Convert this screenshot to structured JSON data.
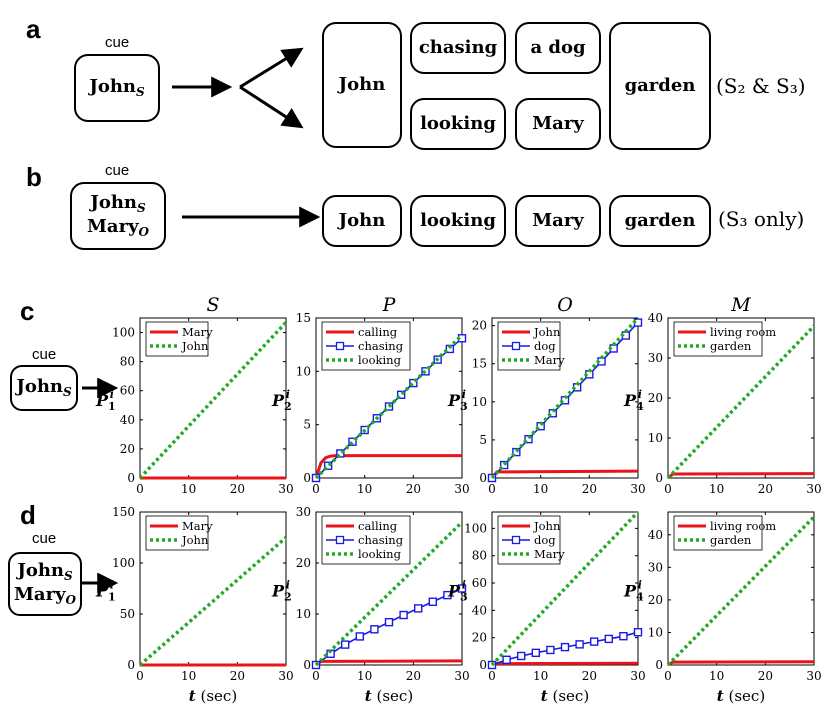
{
  "panel_a": {
    "label": "a",
    "cue": "cue",
    "cue_box": {
      "name": "John",
      "sub": "S"
    },
    "upper_row": [
      "chasing",
      "a dog"
    ],
    "lower_row": [
      "looking",
      "Mary"
    ],
    "subject": "John",
    "location": "garden",
    "note": "(S₂ & S₃)"
  },
  "panel_b": {
    "label": "b",
    "cue": "cue",
    "cue_lines": [
      {
        "name": "John",
        "sub": "S"
      },
      {
        "name": "Mary",
        "sub": "O"
      }
    ],
    "row": [
      "John",
      "looking",
      "Mary",
      "garden"
    ],
    "note": "(S₃ only)"
  },
  "panel_c": {
    "label": "c",
    "cue": "cue",
    "cue_lines": [
      {
        "name": "John",
        "sub": "S"
      }
    ]
  },
  "panel_d": {
    "label": "d",
    "cue": "cue",
    "cue_lines": [
      {
        "name": "John",
        "sub": "S"
      },
      {
        "name": "Mary",
        "sub": "O"
      }
    ]
  },
  "column_titles": [
    "S",
    "P",
    "O",
    "M"
  ],
  "xlabel": "t (sec)",
  "colors": {
    "red": "#e8141a",
    "blue": "#1a1ae6",
    "green": "#22aa22"
  },
  "chart_data": [
    {
      "type": "line",
      "row": "c",
      "col": 0,
      "ylabel": "P_1^i",
      "xlim": [
        0,
        30
      ],
      "ylim": [
        0,
        110
      ],
      "xticks": [
        0,
        10,
        20,
        30
      ],
      "yticks": [
        0,
        20,
        40,
        60,
        80,
        100
      ],
      "series": [
        {
          "name": "Mary",
          "style": "red",
          "x": [
            0,
            30
          ],
          "y": [
            0,
            0
          ]
        },
        {
          "name": "John",
          "style": "green",
          "x": [
            0,
            30
          ],
          "y": [
            0,
            107
          ]
        }
      ]
    },
    {
      "type": "line",
      "row": "c",
      "col": 1,
      "ylabel": "P_2^i",
      "xlim": [
        0,
        30
      ],
      "ylim": [
        0,
        15
      ],
      "xticks": [
        0,
        10,
        20,
        30
      ],
      "yticks": [
        0,
        5,
        10,
        15
      ],
      "series": [
        {
          "name": "calling",
          "style": "red",
          "x": [
            0,
            1,
            2,
            3,
            4,
            5,
            6,
            30
          ],
          "y": [
            0,
            1.4,
            1.9,
            2.05,
            2.1,
            2.1,
            2.1,
            2.1
          ]
        },
        {
          "name": "chasing",
          "style": "blue",
          "x": [
            0,
            2.5,
            5,
            7.5,
            10,
            12.5,
            15,
            17.5,
            20,
            22.5,
            25,
            27.5,
            30
          ],
          "y": [
            0,
            1.15,
            2.3,
            3.4,
            4.5,
            5.6,
            6.7,
            7.8,
            8.9,
            10,
            11.1,
            12.1,
            13.1
          ]
        },
        {
          "name": "looking",
          "style": "green",
          "x": [
            0,
            30
          ],
          "y": [
            0,
            13.4
          ]
        }
      ]
    },
    {
      "type": "line",
      "row": "c",
      "col": 2,
      "ylabel": "P_3^i",
      "xlim": [
        0,
        30
      ],
      "ylim": [
        0,
        21
      ],
      "xticks": [
        0,
        10,
        20,
        30
      ],
      "yticks": [
        0,
        5,
        10,
        15,
        20
      ],
      "series": [
        {
          "name": "John",
          "style": "red",
          "x": [
            0,
            1,
            30
          ],
          "y": [
            0,
            0.8,
            0.9
          ]
        },
        {
          "name": "dog",
          "style": "blue",
          "x": [
            0,
            2.5,
            5,
            7.5,
            10,
            12.5,
            15,
            17.5,
            20,
            22.5,
            25,
            27.5,
            30
          ],
          "y": [
            0,
            1.7,
            3.4,
            5.1,
            6.8,
            8.5,
            10.2,
            11.9,
            13.6,
            15.3,
            17,
            18.7,
            20.4
          ]
        },
        {
          "name": "Mary",
          "style": "green",
          "x": [
            0,
            30
          ],
          "y": [
            0,
            21
          ]
        }
      ]
    },
    {
      "type": "line",
      "row": "c",
      "col": 3,
      "ylabel": "P_4^i",
      "xlim": [
        0,
        30
      ],
      "ylim": [
        0,
        40
      ],
      "xticks": [
        0,
        10,
        20,
        30
      ],
      "yticks": [
        0,
        10,
        20,
        30,
        40
      ],
      "series": [
        {
          "name": "living room",
          "style": "red",
          "x": [
            0,
            1,
            30
          ],
          "y": [
            0,
            1,
            1.1
          ]
        },
        {
          "name": "garden",
          "style": "green",
          "x": [
            0,
            30
          ],
          "y": [
            0,
            38
          ]
        }
      ]
    },
    {
      "type": "line",
      "row": "d",
      "col": 0,
      "ylabel": "P_1^i",
      "xlim": [
        0,
        30
      ],
      "ylim": [
        0,
        150
      ],
      "xticks": [
        0,
        10,
        20,
        30
      ],
      "yticks": [
        0,
        50,
        100,
        150
      ],
      "series": [
        {
          "name": "Mary",
          "style": "red",
          "x": [
            0,
            30
          ],
          "y": [
            0,
            0
          ]
        },
        {
          "name": "John",
          "style": "green",
          "x": [
            0,
            30
          ],
          "y": [
            0,
            125
          ]
        }
      ]
    },
    {
      "type": "line",
      "row": "d",
      "col": 1,
      "ylabel": "P_2^i",
      "xlim": [
        0,
        30
      ],
      "ylim": [
        0,
        30
      ],
      "xticks": [
        0,
        10,
        20,
        30
      ],
      "yticks": [
        0,
        10,
        20,
        30
      ],
      "series": [
        {
          "name": "calling",
          "style": "red",
          "x": [
            0,
            1,
            30
          ],
          "y": [
            0,
            0.7,
            0.8
          ]
        },
        {
          "name": "chasing",
          "style": "blue",
          "x": [
            0,
            3,
            6,
            9,
            12,
            15,
            18,
            21,
            24,
            27,
            30
          ],
          "y": [
            0,
            2.2,
            4.0,
            5.6,
            7.0,
            8.4,
            9.8,
            11.1,
            12.4,
            13.7,
            15.0
          ]
        },
        {
          "name": "looking",
          "style": "green",
          "x": [
            0,
            30
          ],
          "y": [
            0,
            28
          ]
        }
      ]
    },
    {
      "type": "line",
      "row": "d",
      "col": 2,
      "ylabel": "P_3^i",
      "xlim": [
        0,
        30
      ],
      "ylim": [
        0,
        112
      ],
      "xticks": [
        0,
        10,
        20,
        30
      ],
      "yticks": [
        0,
        20,
        40,
        60,
        80,
        100
      ],
      "series": [
        {
          "name": "John",
          "style": "red",
          "x": [
            0,
            1,
            30
          ],
          "y": [
            0,
            1,
            1.3
          ]
        },
        {
          "name": "dog",
          "style": "blue",
          "x": [
            0,
            3,
            6,
            9,
            12,
            15,
            18,
            21,
            24,
            27,
            30
          ],
          "y": [
            0,
            3.8,
            6.6,
            8.9,
            11,
            13.1,
            15.1,
            17.1,
            19.1,
            21.1,
            24
          ]
        },
        {
          "name": "Mary",
          "style": "green",
          "x": [
            0,
            30
          ],
          "y": [
            0,
            112
          ]
        }
      ]
    },
    {
      "type": "line",
      "row": "d",
      "col": 3,
      "ylabel": "P_4^i",
      "xlim": [
        0,
        30
      ],
      "ylim": [
        0,
        47
      ],
      "xticks": [
        0,
        10,
        20,
        30
      ],
      "yticks": [
        0,
        10,
        20,
        30,
        40
      ],
      "series": [
        {
          "name": "living room",
          "style": "red",
          "x": [
            0,
            1,
            30
          ],
          "y": [
            0,
            0.9,
            1
          ]
        },
        {
          "name": "garden",
          "style": "green",
          "x": [
            0,
            30
          ],
          "y": [
            0,
            45.5
          ]
        }
      ]
    }
  ]
}
